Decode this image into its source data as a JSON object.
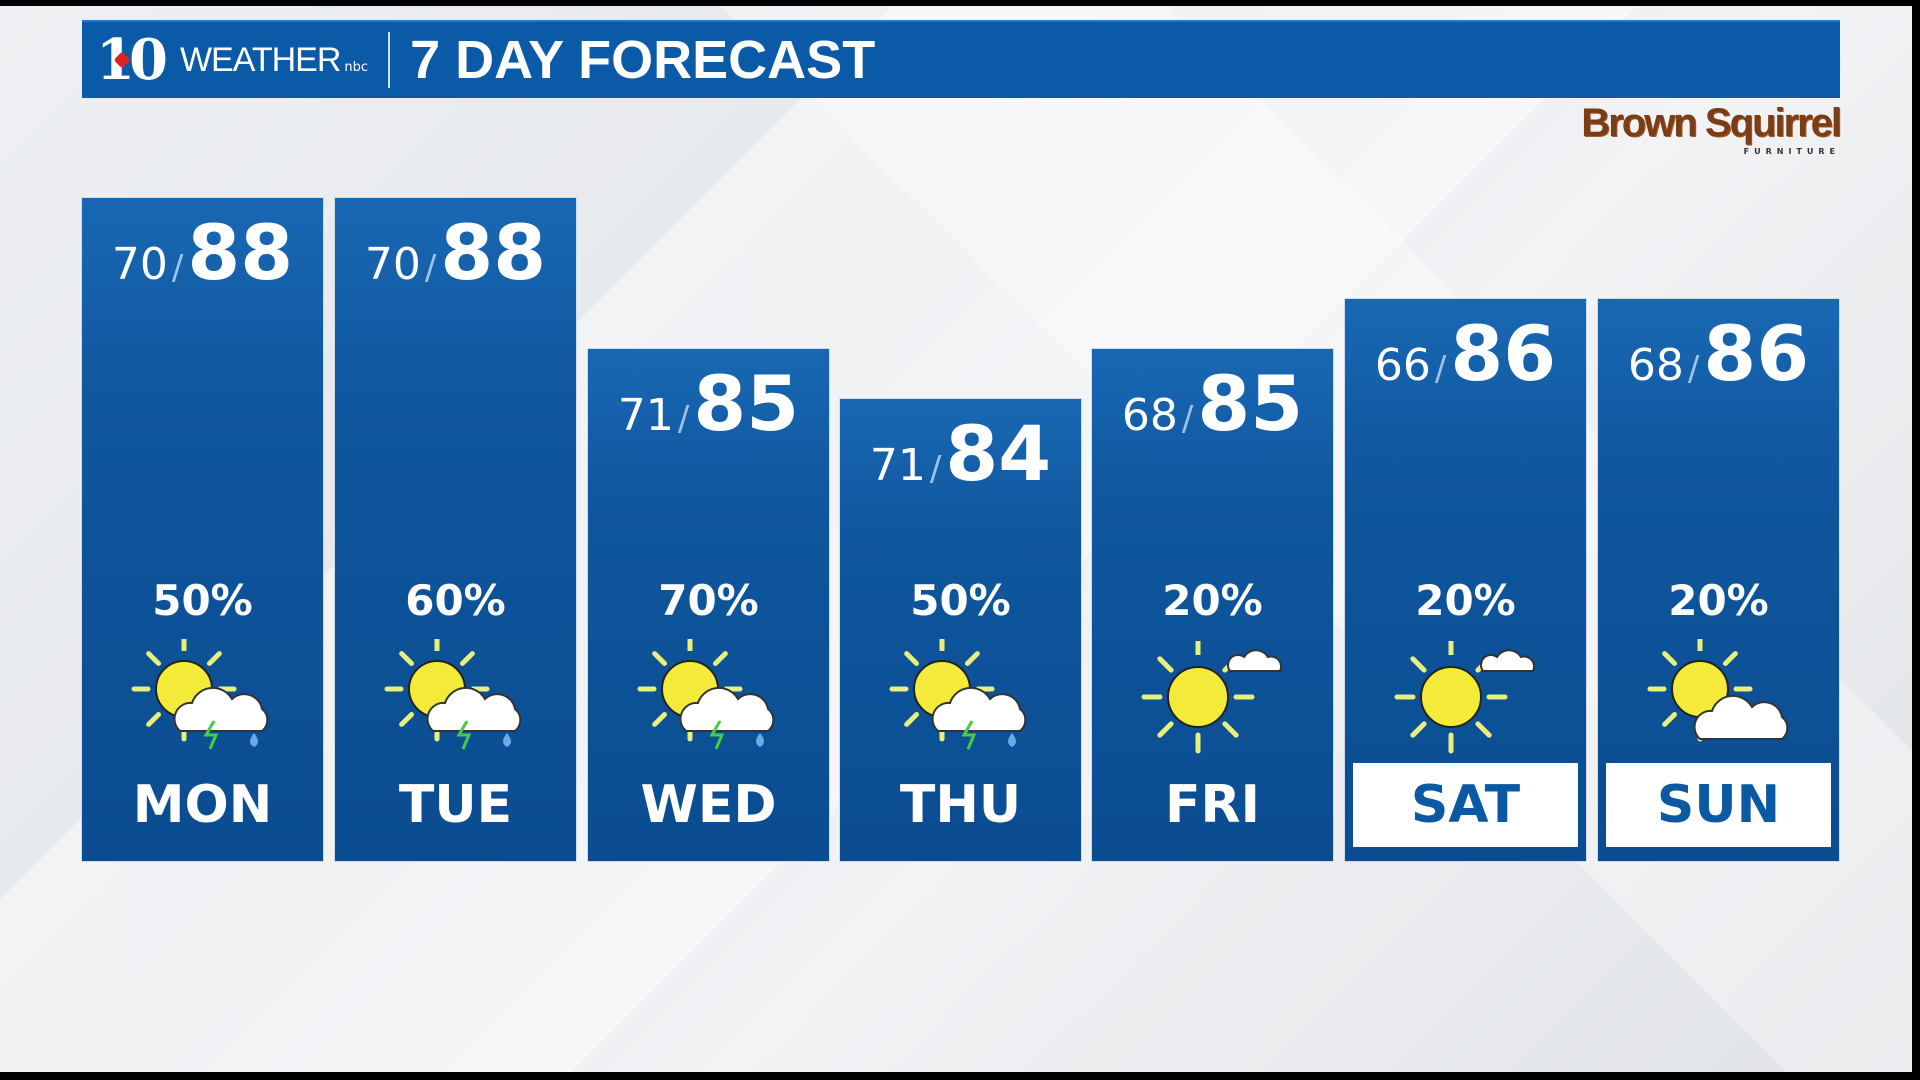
{
  "header": {
    "logo_number": "10",
    "logo_word": "WEATHER",
    "network": "nbc",
    "title": "7 DAY FORECAST"
  },
  "sponsor": {
    "name": "Brown Squirrel",
    "subtitle": "FURNITURE",
    "color": "#7a3d17"
  },
  "colors": {
    "panel": "#0b4c91",
    "header": "#0a5aa8",
    "highlight_text": "#0b58a3",
    "sun": "#f4ea3a"
  },
  "days": [
    {
      "day": "MON",
      "low": "70",
      "high": "88",
      "precip": "50%",
      "icon": "partly-sunny-thunderstorm-icon",
      "highlight": false
    },
    {
      "day": "TUE",
      "low": "70",
      "high": "88",
      "precip": "60%",
      "icon": "partly-sunny-thunderstorm-icon",
      "highlight": false
    },
    {
      "day": "WED",
      "low": "71",
      "high": "85",
      "precip": "70%",
      "icon": "partly-sunny-thunderstorm-icon",
      "highlight": false
    },
    {
      "day": "THU",
      "low": "71",
      "high": "84",
      "precip": "50%",
      "icon": "partly-sunny-thunderstorm-icon",
      "highlight": false
    },
    {
      "day": "FRI",
      "low": "68",
      "high": "85",
      "precip": "20%",
      "icon": "mostly-sunny-icon",
      "highlight": false
    },
    {
      "day": "SAT",
      "low": "66",
      "high": "86",
      "precip": "20%",
      "icon": "mostly-sunny-icon",
      "highlight": true
    },
    {
      "day": "SUN",
      "low": "68",
      "high": "86",
      "precip": "20%",
      "icon": "partly-cloudy-icon",
      "highlight": true
    }
  ]
}
